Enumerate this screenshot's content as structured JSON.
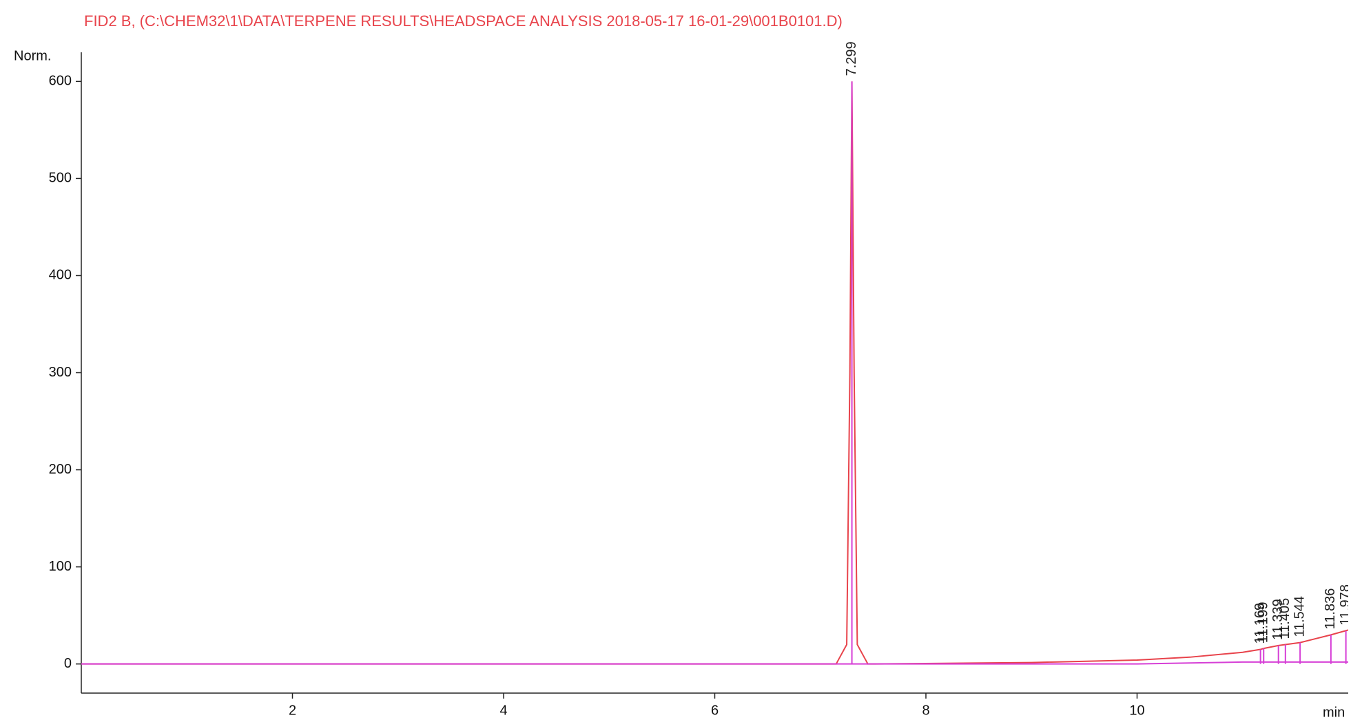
{
  "chart_data": {
    "type": "line",
    "title": "FID2 B,  (C:\\CHEM32\\1\\DATA\\TERPENE RESULTS\\HEADSPACE ANALYSIS 2018-05-17 16-01-29\\001B0101.D)",
    "y_label": "Norm.",
    "x_label": "min",
    "xlim": [
      0,
      12
    ],
    "ylim": [
      -30,
      630
    ],
    "xticks": [
      2,
      4,
      6,
      8,
      10
    ],
    "yticks": [
      0,
      100,
      200,
      300,
      400,
      500,
      600
    ],
    "x": [
      0,
      7.15,
      7.25,
      7.28,
      7.299,
      7.32,
      7.35,
      7.45,
      8,
      9,
      10,
      10.5,
      11,
      11.169,
      11.199,
      11.339,
      11.405,
      11.544,
      11.836,
      12
    ],
    "series": [
      {
        "color": "#e8434b",
        "values": [
          0,
          0,
          20,
          300,
          600,
          300,
          20,
          0,
          0.5,
          1.5,
          4,
          7,
          12,
          15,
          16,
          19,
          20,
          22,
          30,
          35
        ]
      },
      {
        "color": "#d63fd6",
        "values": [
          0,
          0,
          0,
          0,
          0,
          0,
          0,
          0,
          0,
          0,
          0,
          1,
          2,
          2,
          2,
          2,
          2,
          2,
          2,
          2
        ]
      }
    ],
    "peaks": {
      "color": "#d63fd6",
      "x": [
        7.299,
        11.169,
        11.199,
        11.339,
        11.405,
        11.544,
        11.836,
        11.978
      ],
      "values": [
        600,
        15,
        16,
        19,
        20,
        22,
        30,
        34
      ]
    }
  }
}
